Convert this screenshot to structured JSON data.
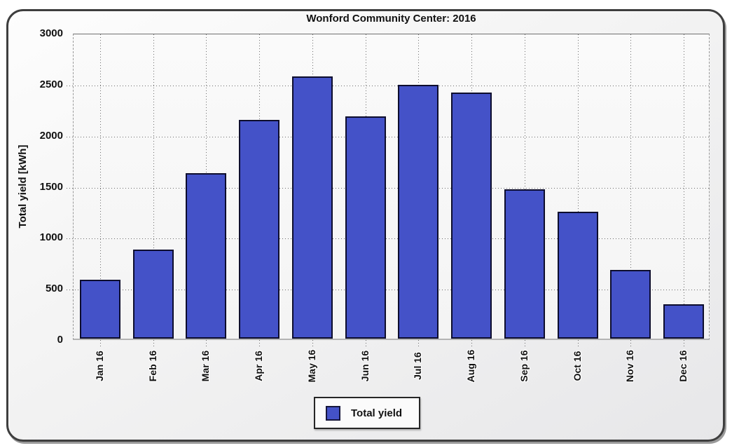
{
  "chart_data": {
    "type": "bar",
    "title": "Wonford Community Center: 2016",
    "xlabel": "",
    "ylabel": "Total yield [kWh]",
    "categories": [
      "Jan 16",
      "Feb 16",
      "Mar 16",
      "Apr 16",
      "May 16",
      "Jun 16",
      "Jul 16",
      "Aug 16",
      "Sep 16",
      "Oct 16",
      "Nov 16",
      "Dec 16"
    ],
    "series": [
      {
        "name": "Total yield",
        "values": [
          575,
          875,
          1620,
          2140,
          2565,
          2175,
          2485,
          2410,
          1465,
          1245,
          675,
          335
        ]
      }
    ],
    "ylim": [
      0,
      3000
    ],
    "yticks": [
      0,
      500,
      1000,
      1500,
      2000,
      2500,
      3000
    ],
    "grid": "dotted dark-gray major gridlines: horizontal at each ytick, vertical at each category center; ticks extend slightly past axes",
    "legend_position": "bottom-center",
    "bar_color": "#4452c8",
    "bar_border_color": "#0d0d2d"
  },
  "legend": {
    "items": [
      {
        "label": "Total yield",
        "swatch_color": "#4452c8"
      }
    ]
  },
  "colors": {
    "page_background": "#ffffff",
    "frame_border": "#3e3e3e",
    "panel_background": "#f1f1f1",
    "grid_dots": "#6c6c6c",
    "text": "#111111"
  }
}
